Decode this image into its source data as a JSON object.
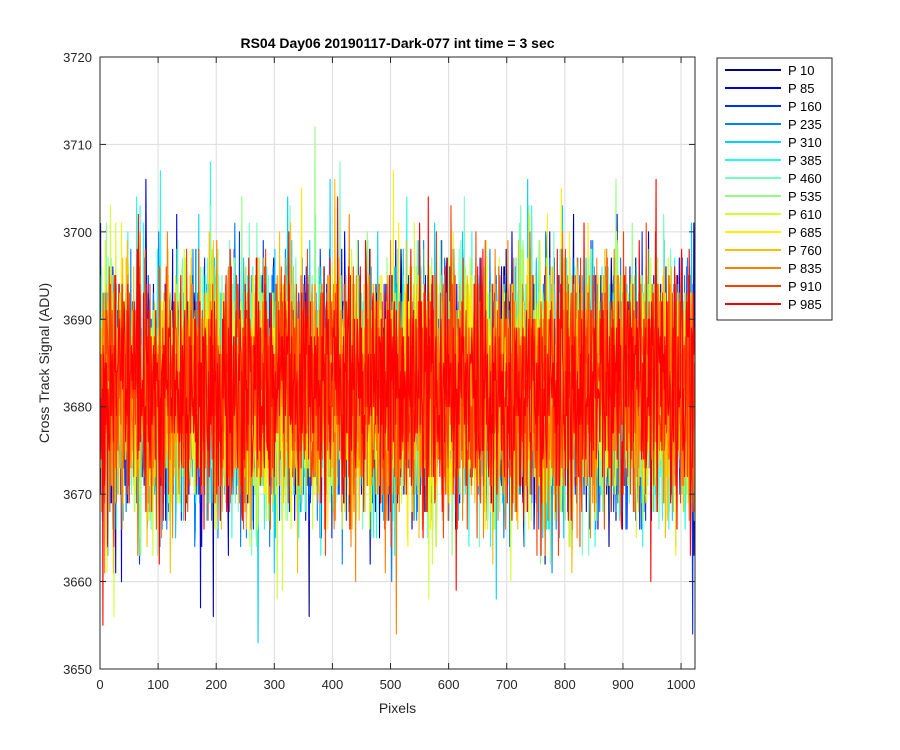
{
  "chart_data": {
    "type": "line",
    "title": "RS04 Day06 20190117-Dark-077 int time = 3 sec",
    "xlabel": "Pixels",
    "ylabel": "Cross Track Signal (ADU)",
    "xlim": [
      0,
      1024
    ],
    "ylim": [
      3650,
      3720
    ],
    "x_ticks": [
      0,
      100,
      200,
      300,
      400,
      500,
      600,
      700,
      800,
      900,
      1000
    ],
    "y_ticks": [
      3650,
      3660,
      3670,
      3680,
      3690,
      3700,
      3710,
      3720
    ],
    "x_tick_labels": [
      "0",
      "100",
      "200",
      "300",
      "400",
      "500",
      "600",
      "700",
      "800",
      "900",
      "1000"
    ],
    "y_tick_labels": [
      "3650",
      "3660",
      "3670",
      "3680",
      "3690",
      "3700",
      "3710",
      "3720"
    ],
    "grid": true,
    "legend_position": "outside-top-right",
    "x_range_points": [
      1,
      1024
    ],
    "noise_mean_approx": 3682,
    "noise_std_approx": 7,
    "series": [
      {
        "name": "P 10",
        "color": "#00008F"
      },
      {
        "name": "P 85",
        "color": "#0000DF"
      },
      {
        "name": "P 160",
        "color": "#0030FF"
      },
      {
        "name": "P 235",
        "color": "#0080FF"
      },
      {
        "name": "P 310",
        "color": "#00CFFF"
      },
      {
        "name": "P 385",
        "color": "#20FFDF"
      },
      {
        "name": "P 460",
        "color": "#70FFBF"
      },
      {
        "name": "P 535",
        "color": "#90FF80"
      },
      {
        "name": "P 610",
        "color": "#CFFF30"
      },
      {
        "name": "P 685",
        "color": "#FFEF00"
      },
      {
        "name": "P 760",
        "color": "#FFBF00"
      },
      {
        "name": "P 835",
        "color": "#FF7F00"
      },
      {
        "name": "P 910",
        "color": "#FF3F00"
      },
      {
        "name": "P 985",
        "color": "#FF0000"
      }
    ],
    "annotated_extremes": [
      {
        "series": "P 535",
        "x": 370,
        "y": 3712
      },
      {
        "series": "P 310",
        "x": 272,
        "y": 3653
      },
      {
        "series": "P 160",
        "x": 1020,
        "y": 3654
      },
      {
        "series": "P 835",
        "x": 510,
        "y": 3654
      },
      {
        "series": "P 985",
        "x": 5,
        "y": 3655
      }
    ]
  }
}
